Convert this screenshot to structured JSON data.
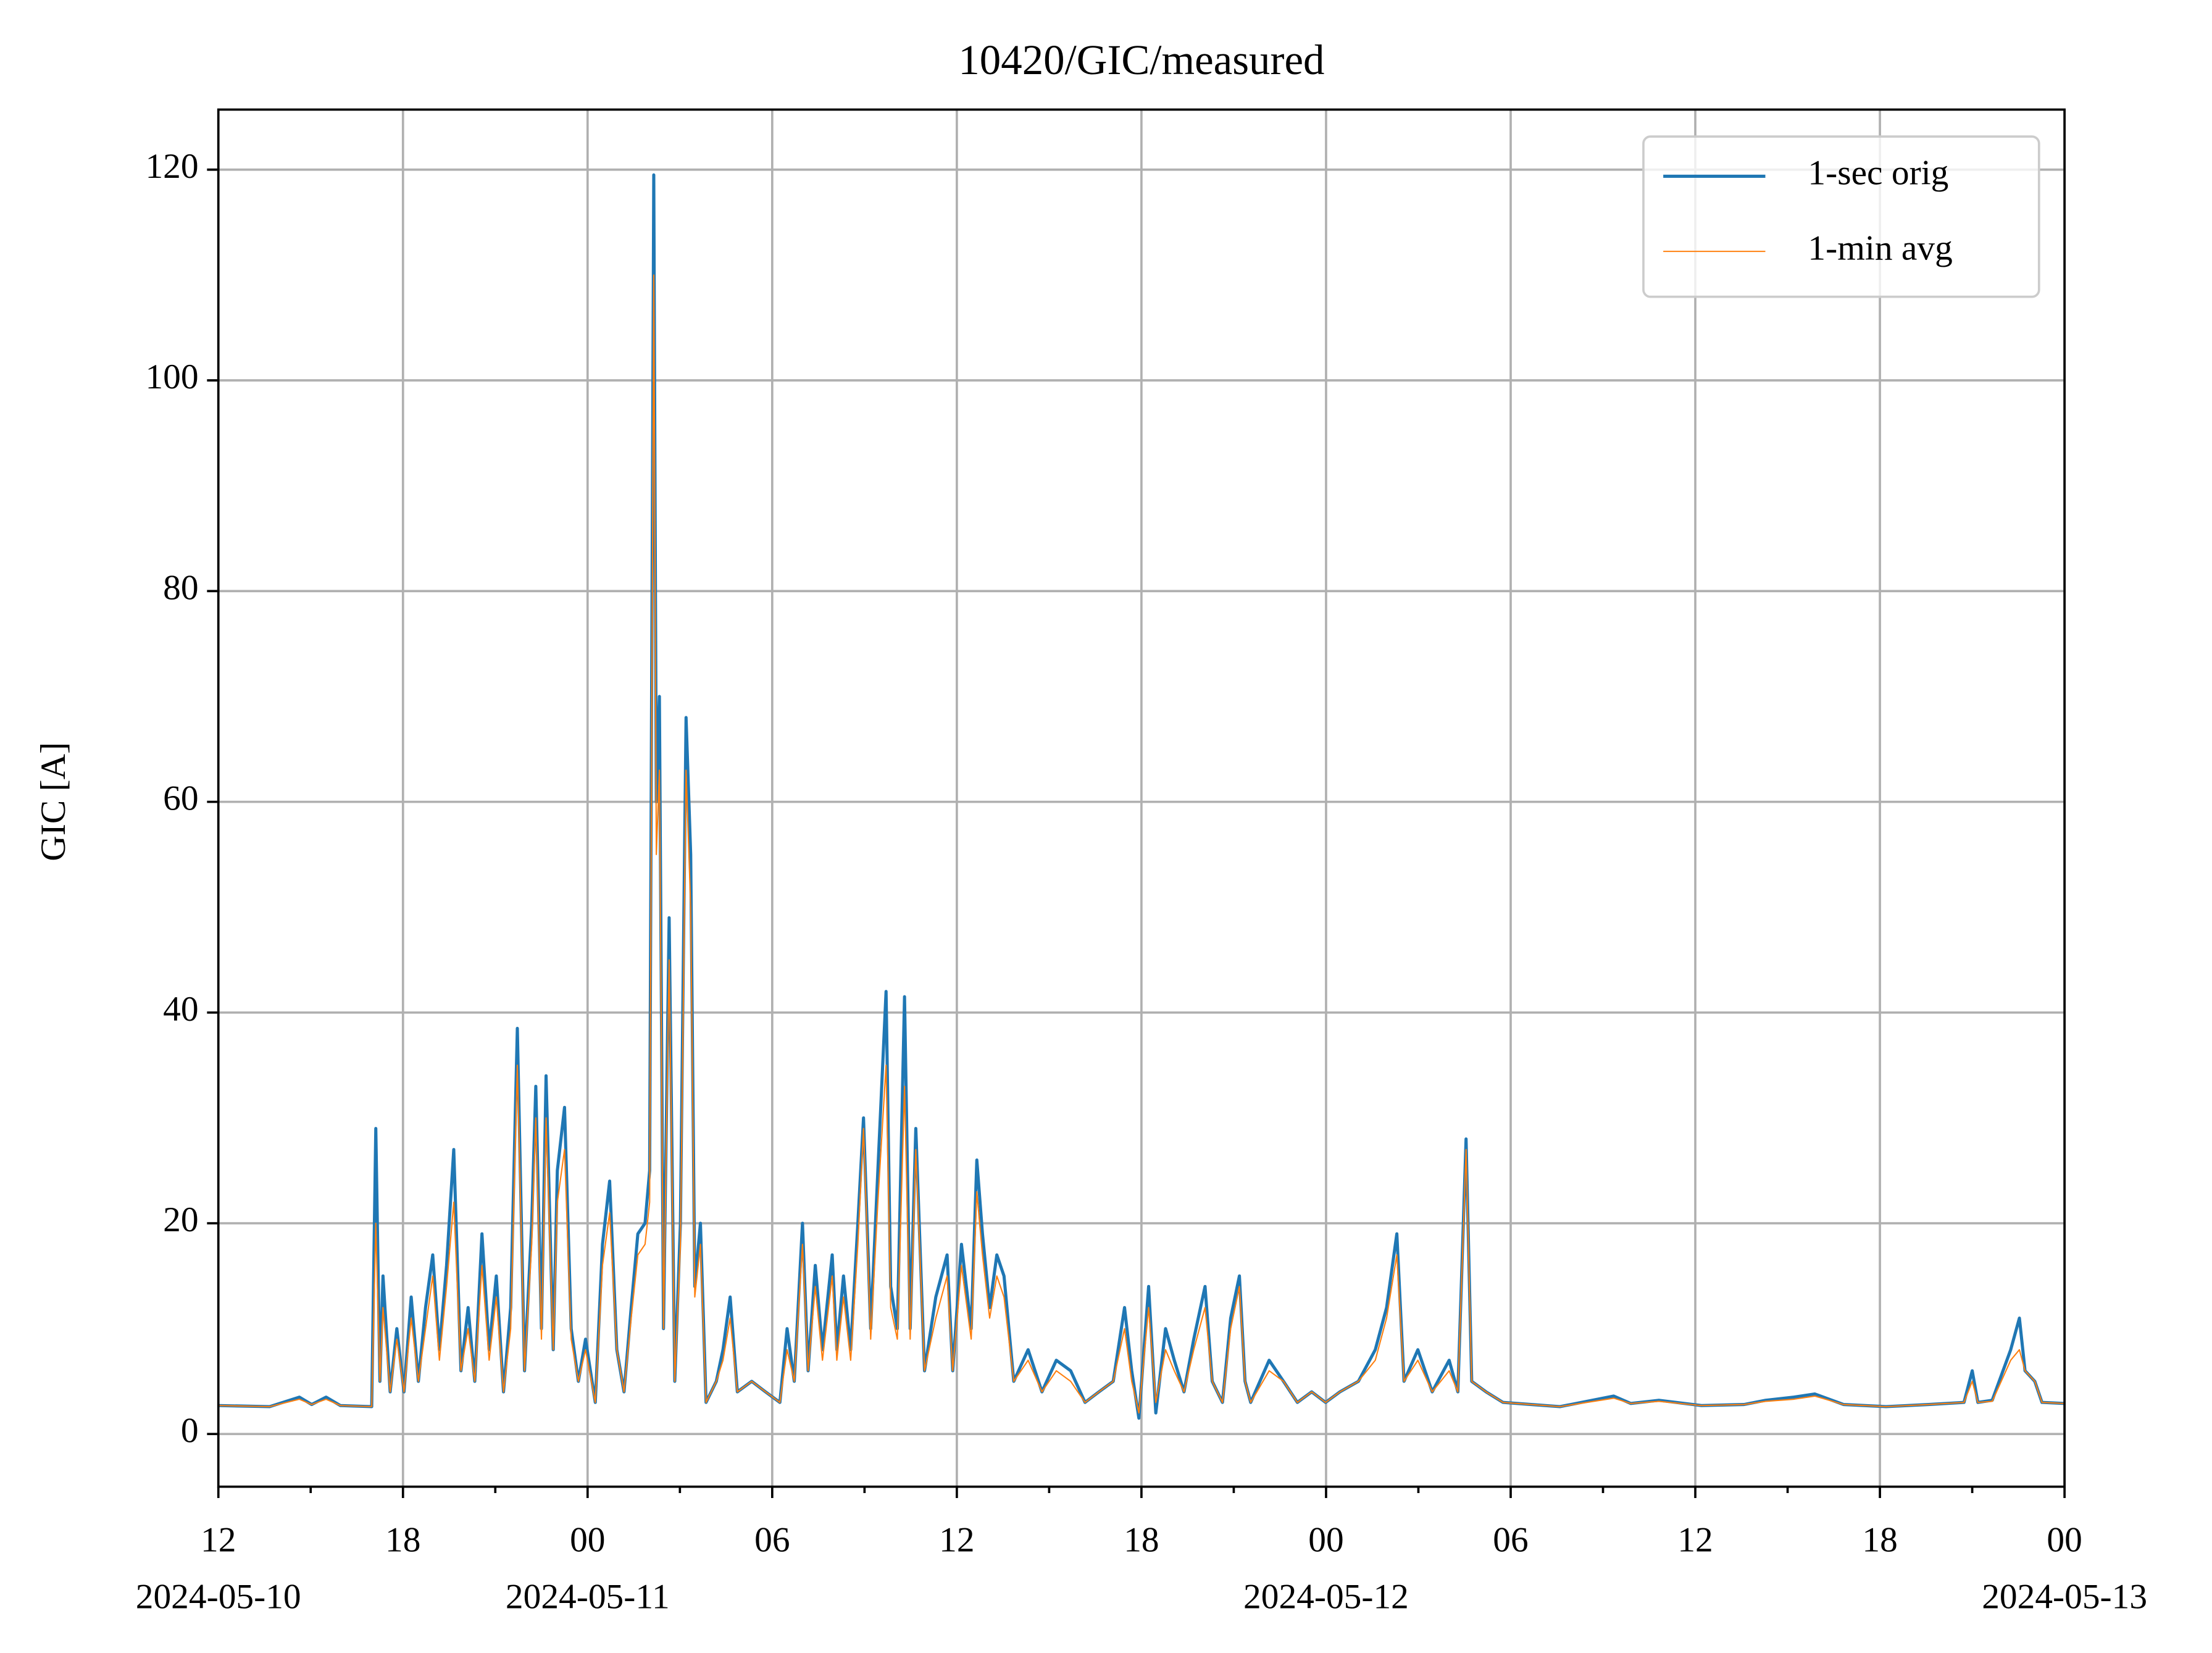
{
  "chart_data": {
    "type": "line",
    "title": "10420/GIC/measured",
    "y_label": "GIC [A]",
    "x": [
      "2024-05-10T12:00",
      "2024-05-10T13:40",
      "2024-05-10T14:38",
      "2024-05-10T15:02",
      "2024-05-10T15:30",
      "2024-05-10T15:58",
      "2024-05-10T16:59",
      "2024-05-10T17:07",
      "2024-05-10T17:15",
      "2024-05-10T17:21",
      "2024-05-10T17:35",
      "2024-05-10T17:48",
      "2024-05-10T18:02",
      "2024-05-10T18:16",
      "2024-05-10T18:30",
      "2024-05-10T18:44",
      "2024-05-10T18:58",
      "2024-05-10T19:11",
      "2024-05-10T19:25",
      "2024-05-10T19:39",
      "2024-05-10T19:53",
      "2024-05-10T20:07",
      "2024-05-10T20:20",
      "2024-05-10T20:34",
      "2024-05-10T20:48",
      "2024-05-10T21:02",
      "2024-05-10T21:16",
      "2024-05-10T21:30",
      "2024-05-10T21:43",
      "2024-05-10T21:57",
      "2024-05-10T22:11",
      "2024-05-10T22:19",
      "2024-05-10T22:30",
      "2024-05-10T22:39",
      "2024-05-10T22:53",
      "2024-05-10T23:01",
      "2024-05-10T23:15",
      "2024-05-10T23:28",
      "2024-05-10T23:42",
      "2024-05-10T23:56",
      "2024-05-11T00:15",
      "2024-05-11T00:29",
      "2024-05-11T00:43",
      "2024-05-11T00:57",
      "2024-05-11T01:11",
      "2024-05-11T01:25",
      "2024-05-11T01:38",
      "2024-05-11T01:52",
      "2024-05-11T02:01",
      "2024-05-11T02:09",
      "2024-05-11T02:14",
      "2024-05-11T02:20",
      "2024-05-11T02:28",
      "2024-05-11T02:39",
      "2024-05-11T02:50",
      "2024-05-11T03:01",
      "2024-05-11T03:12",
      "2024-05-11T03:21",
      "2024-05-11T03:29",
      "2024-05-11T03:40",
      "2024-05-11T03:51",
      "2024-05-11T04:11",
      "2024-05-11T04:24",
      "2024-05-11T04:38",
      "2024-05-11T04:52",
      "2024-05-11T05:20",
      "2024-05-11T05:47",
      "2024-05-11T06:15",
      "2024-05-11T06:29",
      "2024-05-11T06:43",
      "2024-05-11T06:59",
      "2024-05-11T07:10",
      "2024-05-11T07:24",
      "2024-05-11T07:38",
      "2024-05-11T07:57",
      "2024-05-11T08:06",
      "2024-05-11T08:19",
      "2024-05-11T08:33",
      "2024-05-11T08:47",
      "2024-05-11T08:58",
      "2024-05-11T09:12",
      "2024-05-11T09:26",
      "2024-05-11T09:42",
      "2024-05-11T09:51",
      "2024-05-11T10:04",
      "2024-05-11T10:18",
      "2024-05-11T10:29",
      "2024-05-11T10:40",
      "2024-05-11T10:57",
      "2024-05-11T11:19",
      "2024-05-11T11:41",
      "2024-05-11T11:52",
      "2024-05-11T12:09",
      "2024-05-11T12:28",
      "2024-05-11T12:39",
      "2024-05-11T12:50",
      "2024-05-11T13:04",
      "2024-05-11T13:18",
      "2024-05-11T13:32",
      "2024-05-11T13:51",
      "2024-05-11T14:19",
      "2024-05-11T14:46",
      "2024-05-11T15:14",
      "2024-05-11T15:42",
      "2024-05-11T16:10",
      "2024-05-11T16:37",
      "2024-05-11T17:05",
      "2024-05-11T17:27",
      "2024-05-11T17:41",
      "2024-05-11T17:55",
      "2024-05-11T18:14",
      "2024-05-11T18:28",
      "2024-05-11T18:47",
      "2024-05-11T19:04",
      "2024-05-11T19:23",
      "2024-05-11T19:42",
      "2024-05-11T20:04",
      "2024-05-11T20:18",
      "2024-05-11T20:38",
      "2024-05-11T20:54",
      "2024-05-11T21:11",
      "2024-05-11T21:22",
      "2024-05-11T21:33",
      "2024-05-11T22:09",
      "2024-05-11T22:37",
      "2024-05-11T23:04",
      "2024-05-11T23:32",
      "2024-05-11T23:59",
      "2024-05-12T00:27",
      "2024-05-12T01:03",
      "2024-05-12T01:36",
      "2024-05-12T01:58",
      "2024-05-12T02:18",
      "2024-05-12T02:32",
      "2024-05-12T02:59",
      "2024-05-12T03:27",
      "2024-05-12T04:00",
      "2024-05-12T04:17",
      "2024-05-12T04:33",
      "2024-05-12T04:44",
      "2024-05-12T05:12",
      "2024-05-12T05:45",
      "2024-05-12T06:40",
      "2024-05-12T07:36",
      "2024-05-12T09:21",
      "2024-05-12T09:54",
      "2024-05-12T10:49",
      "2024-05-12T12:12",
      "2024-05-12T13:35",
      "2024-05-12T14:17",
      "2024-05-12T15:12",
      "2024-05-12T15:53",
      "2024-05-12T16:49",
      "2024-05-12T18:12",
      "2024-05-12T19:35",
      "2024-05-12T20:44",
      "2024-05-12T21:00",
      "2024-05-12T21:11",
      "2024-05-12T21:39",
      "2024-05-12T22:15",
      "2024-05-12T22:32",
      "2024-05-12T22:43",
      "2024-05-12T23:02",
      "2024-05-12T23:16",
      "2024-05-13T00:00"
    ],
    "series": [
      {
        "name": "1-sec orig",
        "color": "#1f77b4",
        "values": [
          2.7,
          2.6,
          3.5,
          2.8,
          3.5,
          2.7,
          2.6,
          29,
          5,
          15,
          4,
          10,
          4,
          13,
          5,
          12,
          17,
          8,
          16,
          27,
          6,
          12,
          5,
          19,
          8,
          15,
          4,
          12,
          38.5,
          6,
          20,
          33,
          10,
          34,
          8,
          25,
          31,
          10,
          5,
          9,
          3,
          18,
          24,
          8,
          4,
          12,
          19,
          20,
          25,
          119.5,
          60,
          70,
          10,
          49,
          5,
          20,
          68,
          55,
          14,
          20,
          3,
          5,
          8,
          13,
          4,
          5,
          4,
          3,
          10,
          5,
          20,
          6,
          16,
          8,
          17,
          8,
          15,
          8,
          20,
          30,
          10,
          25,
          42,
          14,
          10,
          41.5,
          10,
          29,
          6,
          13,
          17,
          6,
          18,
          10,
          26,
          19,
          12,
          17,
          15,
          5,
          8,
          4,
          7,
          6,
          3,
          4,
          5,
          12,
          6,
          1.5,
          14,
          2,
          10,
          7,
          4,
          9,
          14,
          5,
          3,
          11,
          15,
          5,
          3,
          7,
          5,
          3,
          4,
          3,
          4,
          5,
          8,
          12,
          19,
          5,
          8,
          4,
          7,
          4,
          28,
          5,
          4,
          3,
          2.8,
          2.6,
          3.6,
          2.9,
          3.2,
          2.7,
          2.8,
          3.2,
          3.5,
          3.8,
          2.8,
          2.6,
          2.8,
          3,
          6,
          3,
          3.2,
          8,
          11,
          6,
          5,
          3,
          2.9
        ]
      },
      {
        "name": "1-min avg",
        "color": "#ff7f0e",
        "values": [
          2.7,
          2.6,
          3.3,
          2.8,
          3.3,
          2.7,
          2.6,
          20,
          5,
          12,
          4,
          9,
          4,
          11,
          5,
          10,
          15,
          7,
          14,
          22,
          6,
          10,
          5,
          16,
          7,
          13,
          4,
          10,
          35,
          6,
          18,
          30,
          9,
          30,
          8,
          22,
          27,
          9,
          5,
          8,
          3,
          16,
          21,
          8,
          4,
          11,
          17,
          18,
          22,
          110,
          55,
          63,
          10,
          45,
          5,
          18,
          63,
          50,
          13,
          18,
          3,
          5,
          7,
          11,
          4,
          5,
          4,
          3,
          8,
          5,
          18,
          6,
          14,
          7,
          15,
          7,
          13,
          7,
          18,
          29,
          9,
          22,
          35,
          12,
          9,
          33,
          9,
          27,
          6,
          11,
          15,
          6,
          16,
          9,
          23,
          17,
          11,
          15,
          13,
          5,
          7,
          4,
          6,
          5,
          3,
          4,
          5,
          10,
          5,
          2,
          12,
          3,
          8,
          6,
          4,
          8,
          12,
          5,
          3,
          10,
          14,
          5,
          3,
          6,
          5,
          3,
          4,
          3,
          4,
          5,
          7,
          11,
          17,
          5,
          7,
          4,
          6,
          4,
          27,
          5,
          4,
          3,
          2.8,
          2.6,
          3.4,
          2.9,
          3.1,
          2.7,
          2.8,
          3.1,
          3.3,
          3.6,
          2.8,
          2.6,
          2.8,
          3,
          5,
          3,
          3.1,
          7,
          8,
          6,
          5,
          3,
          2.9
        ]
      }
    ],
    "xlim": [
      "2024-05-10T12:00",
      "2024-05-13T00:00"
    ],
    "xticks": [
      {
        "value": "2024-05-10T12:00",
        "label": "12"
      },
      {
        "value": "2024-05-10T18:00",
        "label": "18"
      },
      {
        "value": "2024-05-11T00:00",
        "label": "00"
      },
      {
        "value": "2024-05-11T06:00",
        "label": "06"
      },
      {
        "value": "2024-05-11T12:00",
        "label": "12"
      },
      {
        "value": "2024-05-11T18:00",
        "label": "18"
      },
      {
        "value": "2024-05-12T00:00",
        "label": "00"
      },
      {
        "value": "2024-05-12T06:00",
        "label": "06"
      },
      {
        "value": "2024-05-12T12:00",
        "label": "12"
      },
      {
        "value": "2024-05-12T18:00",
        "label": "18"
      },
      {
        "value": "2024-05-13T00:00",
        "label": "00"
      }
    ],
    "xtick_dates": [
      {
        "value": "2024-05-10T12:00",
        "label": "2024-05-10"
      },
      {
        "value": "2024-05-11T00:00",
        "label": "2024-05-11"
      },
      {
        "value": "2024-05-12T00:00",
        "label": "2024-05-12"
      },
      {
        "value": "2024-05-13T00:00",
        "label": "2024-05-13"
      }
    ],
    "xminor_ticks": [
      "2024-05-10T15:00",
      "2024-05-10T21:00",
      "2024-05-11T03:00",
      "2024-05-11T09:00",
      "2024-05-11T15:00",
      "2024-05-11T21:00",
      "2024-05-12T03:00",
      "2024-05-12T09:00",
      "2024-05-12T15:00",
      "2024-05-12T21:00"
    ],
    "ylim": [
      -5,
      125.7
    ],
    "yticks": [
      0,
      20,
      40,
      60,
      80,
      100,
      120
    ],
    "grid": true,
    "legend": "upper right"
  }
}
